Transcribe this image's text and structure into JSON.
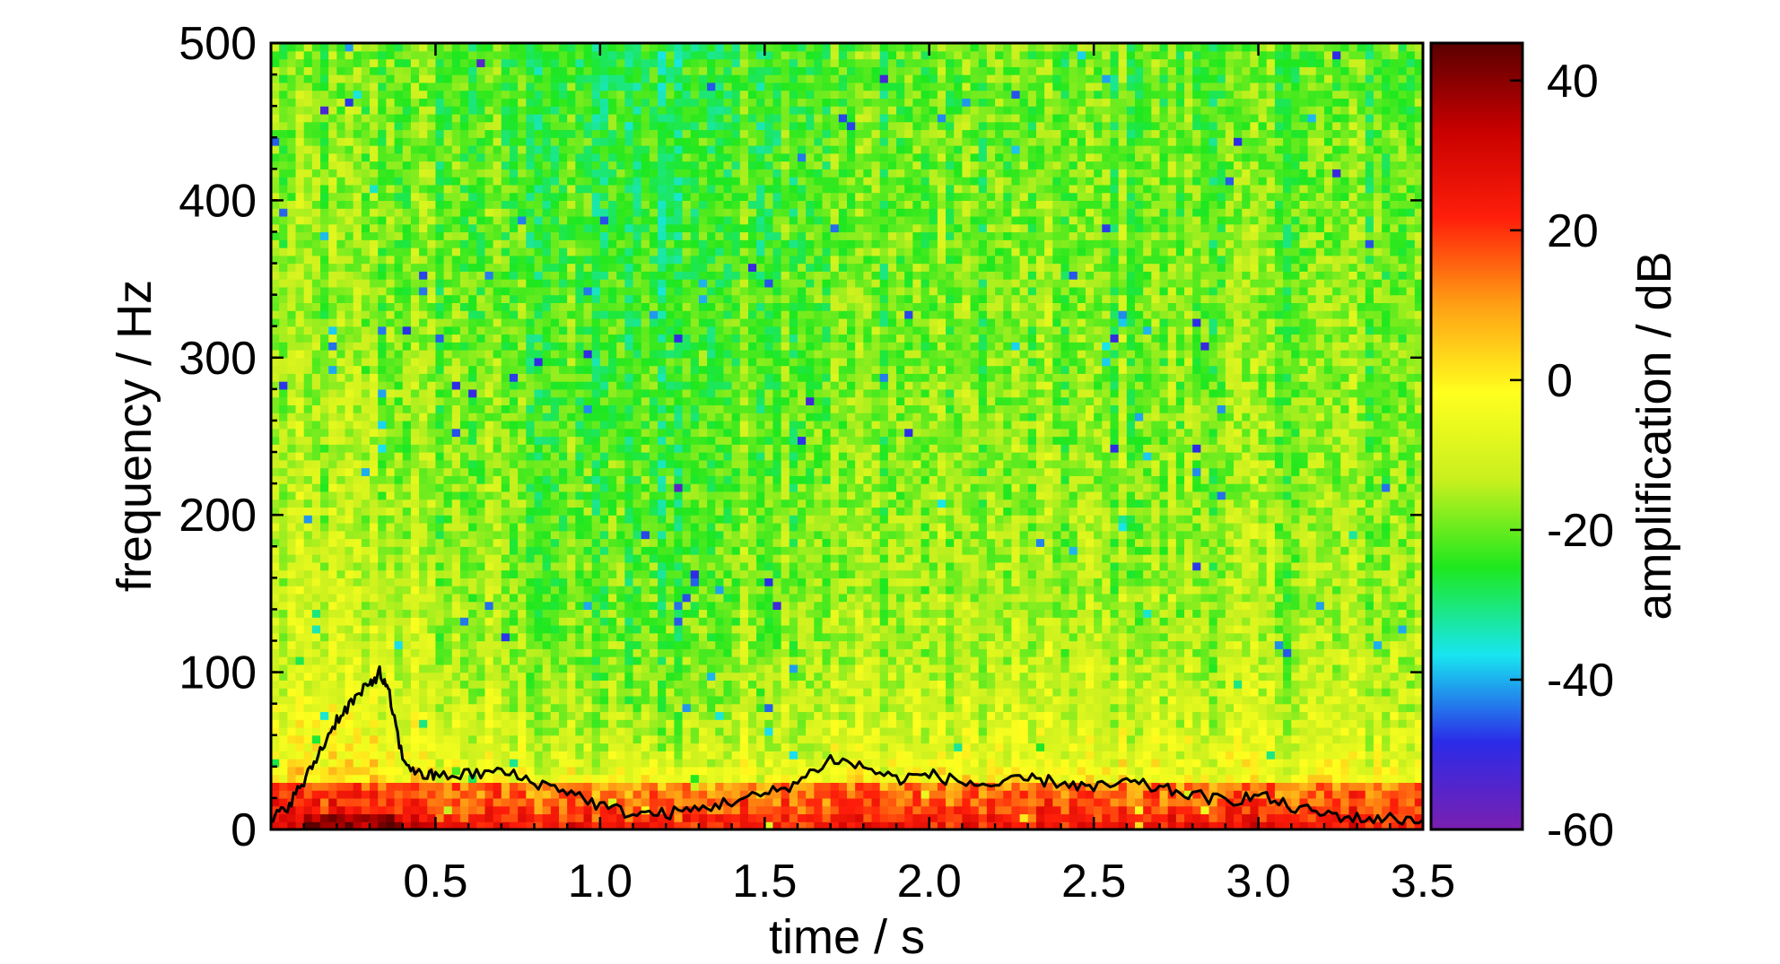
{
  "chart_data": {
    "type": "heatmap",
    "title": "",
    "xlabel": "time / s",
    "ylabel": "frequency / Hz",
    "colorbar_label": "amplification / dB",
    "xlim": [
      0.0,
      3.5
    ],
    "ylim": [
      0,
      500
    ],
    "clim": [
      -60,
      45
    ],
    "x_ticks": [
      "0.5",
      "1.0",
      "1.5",
      "2.0",
      "2.5",
      "3.0",
      "3.5"
    ],
    "y_ticks": [
      "0",
      "100",
      "200",
      "300",
      "400",
      "500"
    ],
    "colorbar_ticks": [
      "40",
      "20",
      "0",
      "-20",
      "-40",
      "-60"
    ],
    "grid": false,
    "colormap": [
      "#7a1fb0",
      "#2b2be8",
      "#18e6f0",
      "#1ee81e",
      "#c8f01e",
      "#ffff1e",
      "#ffa014",
      "#ff1e0a",
      "#c80000",
      "#5a0000"
    ],
    "grid_size": {
      "time_bins": 140,
      "freq_bins": 100
    },
    "overlay_line": {
      "color": "#000000",
      "points": [
        [
          0.0,
          5
        ],
        [
          0.05,
          15
        ],
        [
          0.1,
          30
        ],
        [
          0.15,
          50
        ],
        [
          0.2,
          70
        ],
        [
          0.25,
          82
        ],
        [
          0.3,
          92
        ],
        [
          0.33,
          100
        ],
        [
          0.36,
          85
        ],
        [
          0.4,
          45
        ],
        [
          0.45,
          35
        ],
        [
          0.5,
          34
        ],
        [
          0.6,
          35
        ],
        [
          0.7,
          37
        ],
        [
          0.8,
          30
        ],
        [
          0.9,
          25
        ],
        [
          1.0,
          15
        ],
        [
          1.1,
          10
        ],
        [
          1.2,
          10
        ],
        [
          1.3,
          13
        ],
        [
          1.4,
          18
        ],
        [
          1.5,
          22
        ],
        [
          1.6,
          30
        ],
        [
          1.7,
          45
        ],
        [
          1.8,
          40
        ],
        [
          1.9,
          32
        ],
        [
          2.0,
          35
        ],
        [
          2.1,
          30
        ],
        [
          2.2,
          28
        ],
        [
          2.3,
          32
        ],
        [
          2.4,
          30
        ],
        [
          2.5,
          26
        ],
        [
          2.6,
          30
        ],
        [
          2.7,
          26
        ],
        [
          2.8,
          22
        ],
        [
          2.9,
          18
        ],
        [
          3.0,
          22
        ],
        [
          3.1,
          14
        ],
        [
          3.2,
          10
        ],
        [
          3.3,
          7
        ],
        [
          3.4,
          7
        ],
        [
          3.5,
          6
        ]
      ]
    }
  }
}
